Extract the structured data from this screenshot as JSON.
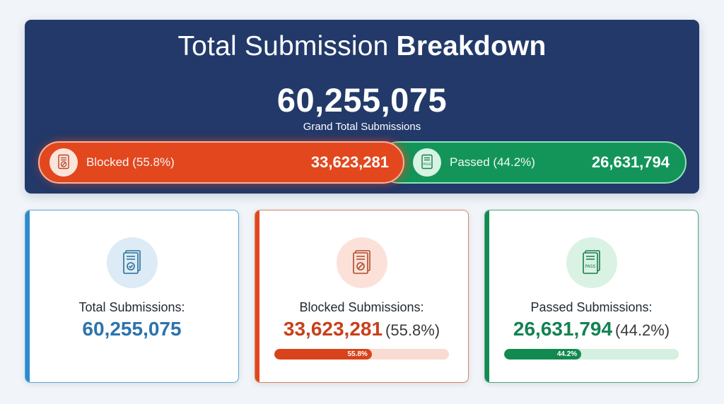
{
  "header": {
    "title_regular": "Total Submission ",
    "title_bold": "Breakdown",
    "grand_total": "60,255,075",
    "grand_total_label": "Grand Total Submissions",
    "colors": {
      "background": "#22396a",
      "blocked": "#e2471e",
      "passed": "#13955a"
    },
    "split": {
      "blocked": {
        "icon": "blocked-document-icon",
        "label": "Blocked (55.8%)",
        "value": "33,623,281",
        "percent": 55.8
      },
      "passed": {
        "icon": "pass-document-icon",
        "label": "Passed (44.2%)",
        "value": "26,631,794",
        "percent": 44.2
      }
    }
  },
  "cards": {
    "total": {
      "icon": "document-check-icon",
      "label": "Total Submissions:",
      "value": "60,255,075",
      "accent": "#2e8ad0"
    },
    "blocked": {
      "icon": "document-blocked-icon",
      "label": "Blocked Submissions:",
      "value": "33,623,281",
      "percent_text": "(55.8%)",
      "progress_label": "55.8%",
      "progress_value": 55.8,
      "accent": "#e2471e"
    },
    "passed": {
      "icon": "document-pass-icon",
      "icon_text": "PASS",
      "label": "Passed Submissions:",
      "value": "26,631,794",
      "percent_text": "(44.2%)",
      "progress_label": "44.2%",
      "progress_value": 44.2,
      "accent": "#138a52"
    }
  }
}
